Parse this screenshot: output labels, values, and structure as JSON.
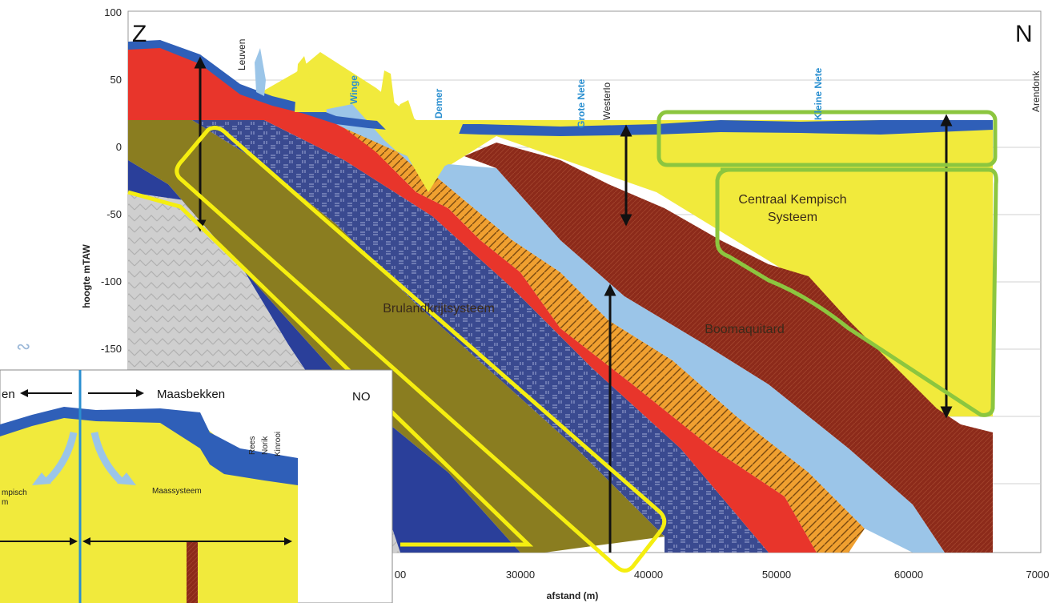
{
  "figure": {
    "ylabel": "hoogte mTAW",
    "xlabel": "afstand (m)",
    "y_ticks": [
      "100",
      "50",
      "0",
      "-50",
      "-100",
      "-150"
    ],
    "x_ticks": [
      "00",
      "30000",
      "40000",
      "50000",
      "60000",
      "7000"
    ],
    "corner_left": "Z",
    "corner_right": "N",
    "places": [
      "Leuven",
      "Westerlo",
      "Arendonk"
    ],
    "rivers": [
      "Winge",
      "Demer",
      "Grote Nete",
      "Kleine Nete"
    ],
    "units": {
      "kempisch_line1": "Centraal Kempisch",
      "kempisch_line2": "Systeem",
      "brulandkrijt": "Brulandkrijtsysteem",
      "boom": "Boomaquitard"
    }
  },
  "inset": {
    "left_label": "en",
    "right_label": "Maasbekken",
    "corner": "NO",
    "unit_left_line1": "mpisch",
    "unit_left_line2": "m",
    "unit_right": "Maassysteem",
    "small_labels": [
      "Rees",
      "Norik",
      "Kinrooi"
    ]
  },
  "colors": {
    "yellow": "#f1ea3c",
    "red": "#e8352b",
    "olive": "#8a7d20",
    "navy": "#2a3f9a",
    "blue_surface": "#2f5fb8",
    "light_blue": "#9bc5e8",
    "brown": "#8c2a1a",
    "orange": "#f0a030",
    "grey": "#c8c8c8",
    "highlight_yellow": "#f5ee10",
    "highlight_green": "#8cc63f"
  }
}
